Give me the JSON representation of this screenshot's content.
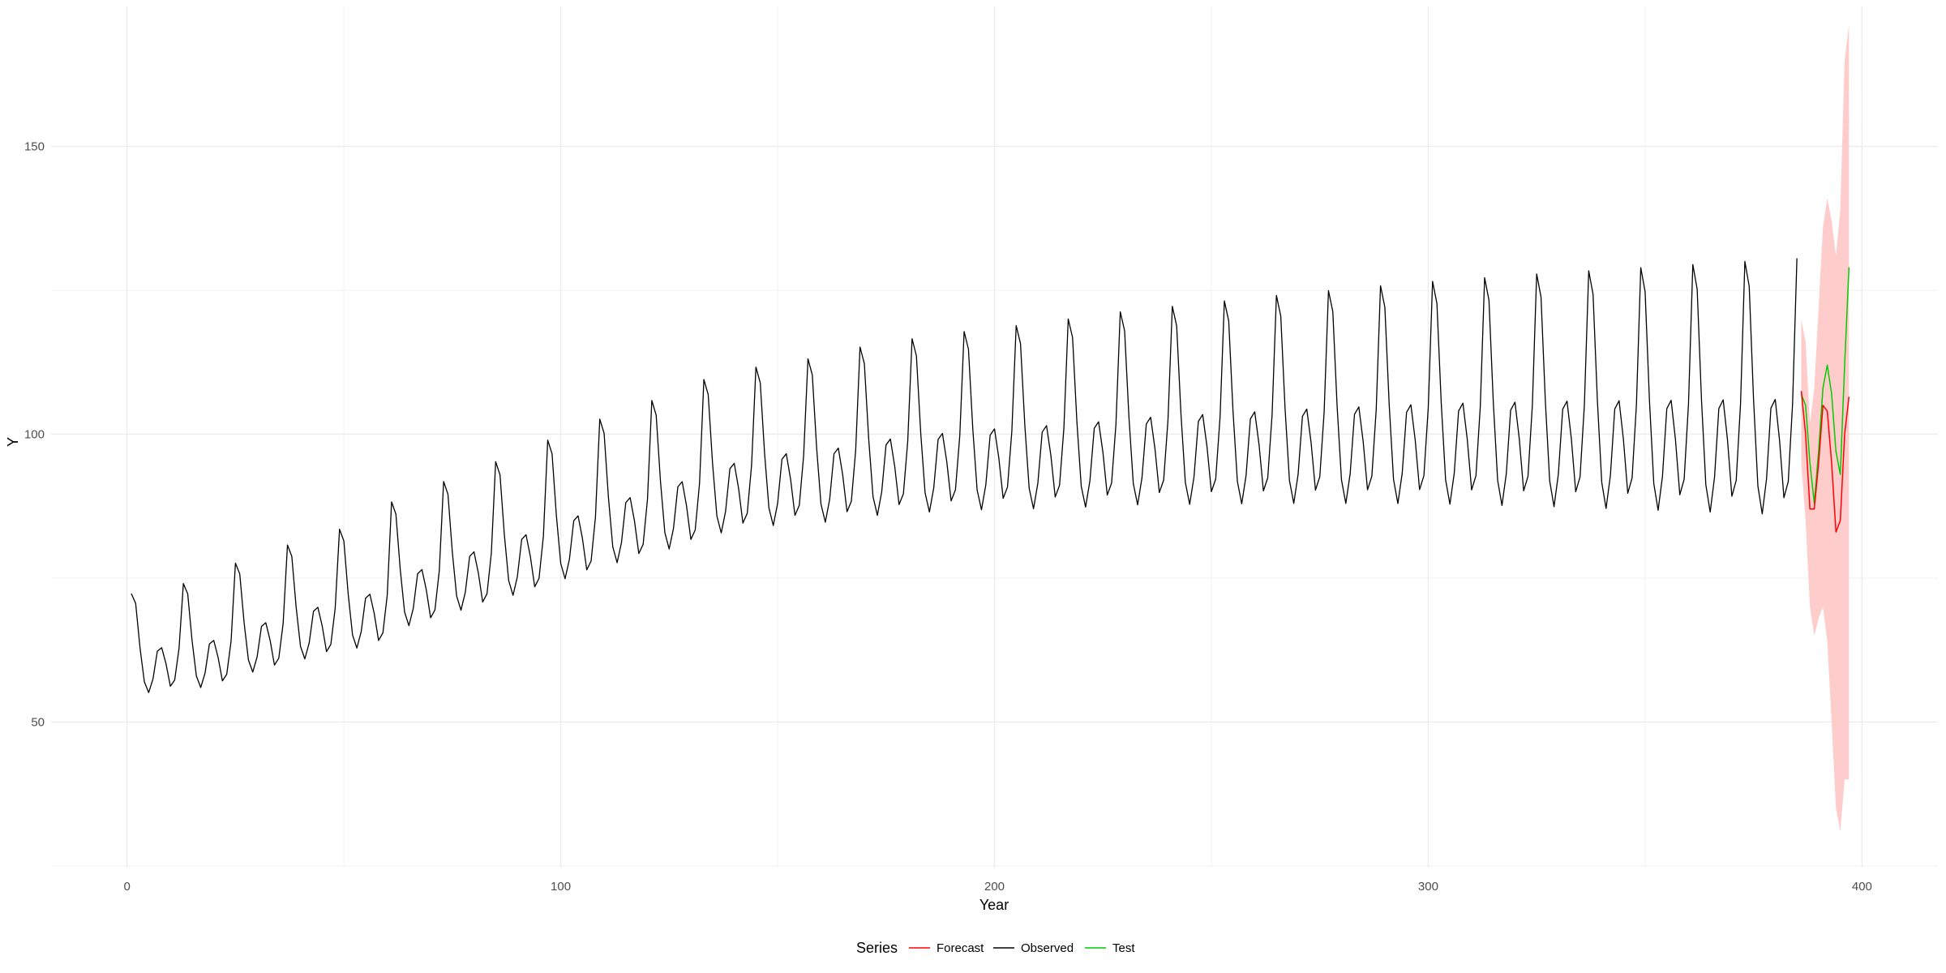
{
  "chart_data": {
    "type": "line",
    "title": "",
    "xlabel": "Year",
    "ylabel": "Y",
    "xlim": [
      -17.5,
      417.5
    ],
    "ylim": [
      24.7,
      174.3
    ],
    "x_ticks": [
      0,
      100,
      200,
      300,
      400
    ],
    "y_ticks": [
      50,
      100,
      150
    ],
    "grid": true,
    "legend": {
      "title": "Series",
      "position": "bottom",
      "entries": [
        {
          "label": "Forecast",
          "color": "#ff0000"
        },
        {
          "label": "Observed",
          "color": "#000000"
        },
        {
          "label": "Test",
          "color": "#00cc00"
        }
      ]
    },
    "observed": {
      "start_x": 1,
      "cycle": [
        72.3,
        70.6,
        62.9,
        57.0,
        55.1,
        57.5,
        62.3,
        62.9,
        60.1,
        56.2,
        57.3,
        62.5
      ],
      "cycle_wiggle": [
        0,
        0,
        0,
        0,
        0,
        0,
        0,
        0,
        0,
        0,
        0,
        0.3
      ],
      "level": [
        0,
        1.2,
        4.2,
        6.8,
        9.0,
        13.2,
        16.2,
        19.1,
        22.3,
        25.4,
        28.1,
        31.2,
        32.8,
        33.7,
        35.2,
        36.1,
        36.8,
        37.3,
        37.9,
        38.6,
        39.0,
        39.4,
        39.8,
        40.1,
        40.4,
        40.6,
        40.7,
        40.8,
        40.8,
        40.8,
        40.8,
        40.8,
        40.8
      ],
      "amplitude": [
        1.0,
        1.05,
        1.1,
        1.15,
        1.2,
        1.25,
        1.3,
        1.35,
        1.4,
        1.45,
        1.5,
        1.55,
        1.6,
        1.65,
        1.7,
        1.75,
        1.8,
        1.85,
        1.9,
        1.95,
        2.0,
        2.05,
        2.1,
        2.15,
        2.2,
        2.25,
        2.3,
        2.35,
        2.4,
        2.45,
        2.5,
        2.55,
        2.6
      ],
      "count": 385
    },
    "forecast": {
      "x": [
        386,
        387,
        388,
        389,
        390,
        391,
        392,
        393,
        394,
        395,
        396,
        397
      ],
      "values": [
        107.5,
        100.0,
        87.0,
        87.0,
        95.0,
        105.0,
        104.0,
        95.0,
        83.0,
        85.0,
        100.0,
        106.5
      ],
      "lower": [
        95.0,
        85.0,
        70.0,
        65.0,
        68.0,
        70.0,
        64.0,
        50.0,
        35.0,
        31.0,
        40.0,
        40.0
      ],
      "upper": [
        120.0,
        116.0,
        102.0,
        108.0,
        122.0,
        136.0,
        141.0,
        137.0,
        131.0,
        139.0,
        165.0,
        171.0
      ],
      "band_color": "#ffcccc"
    },
    "test": {
      "x": [
        386,
        387,
        388,
        389,
        390,
        391,
        392,
        393,
        394,
        395,
        396,
        397
      ],
      "values": [
        107.0,
        105.0,
        95.0,
        88.0,
        97.0,
        108.0,
        112.0,
        107.0,
        97.0,
        93.0,
        112.0,
        129.0
      ]
    }
  }
}
